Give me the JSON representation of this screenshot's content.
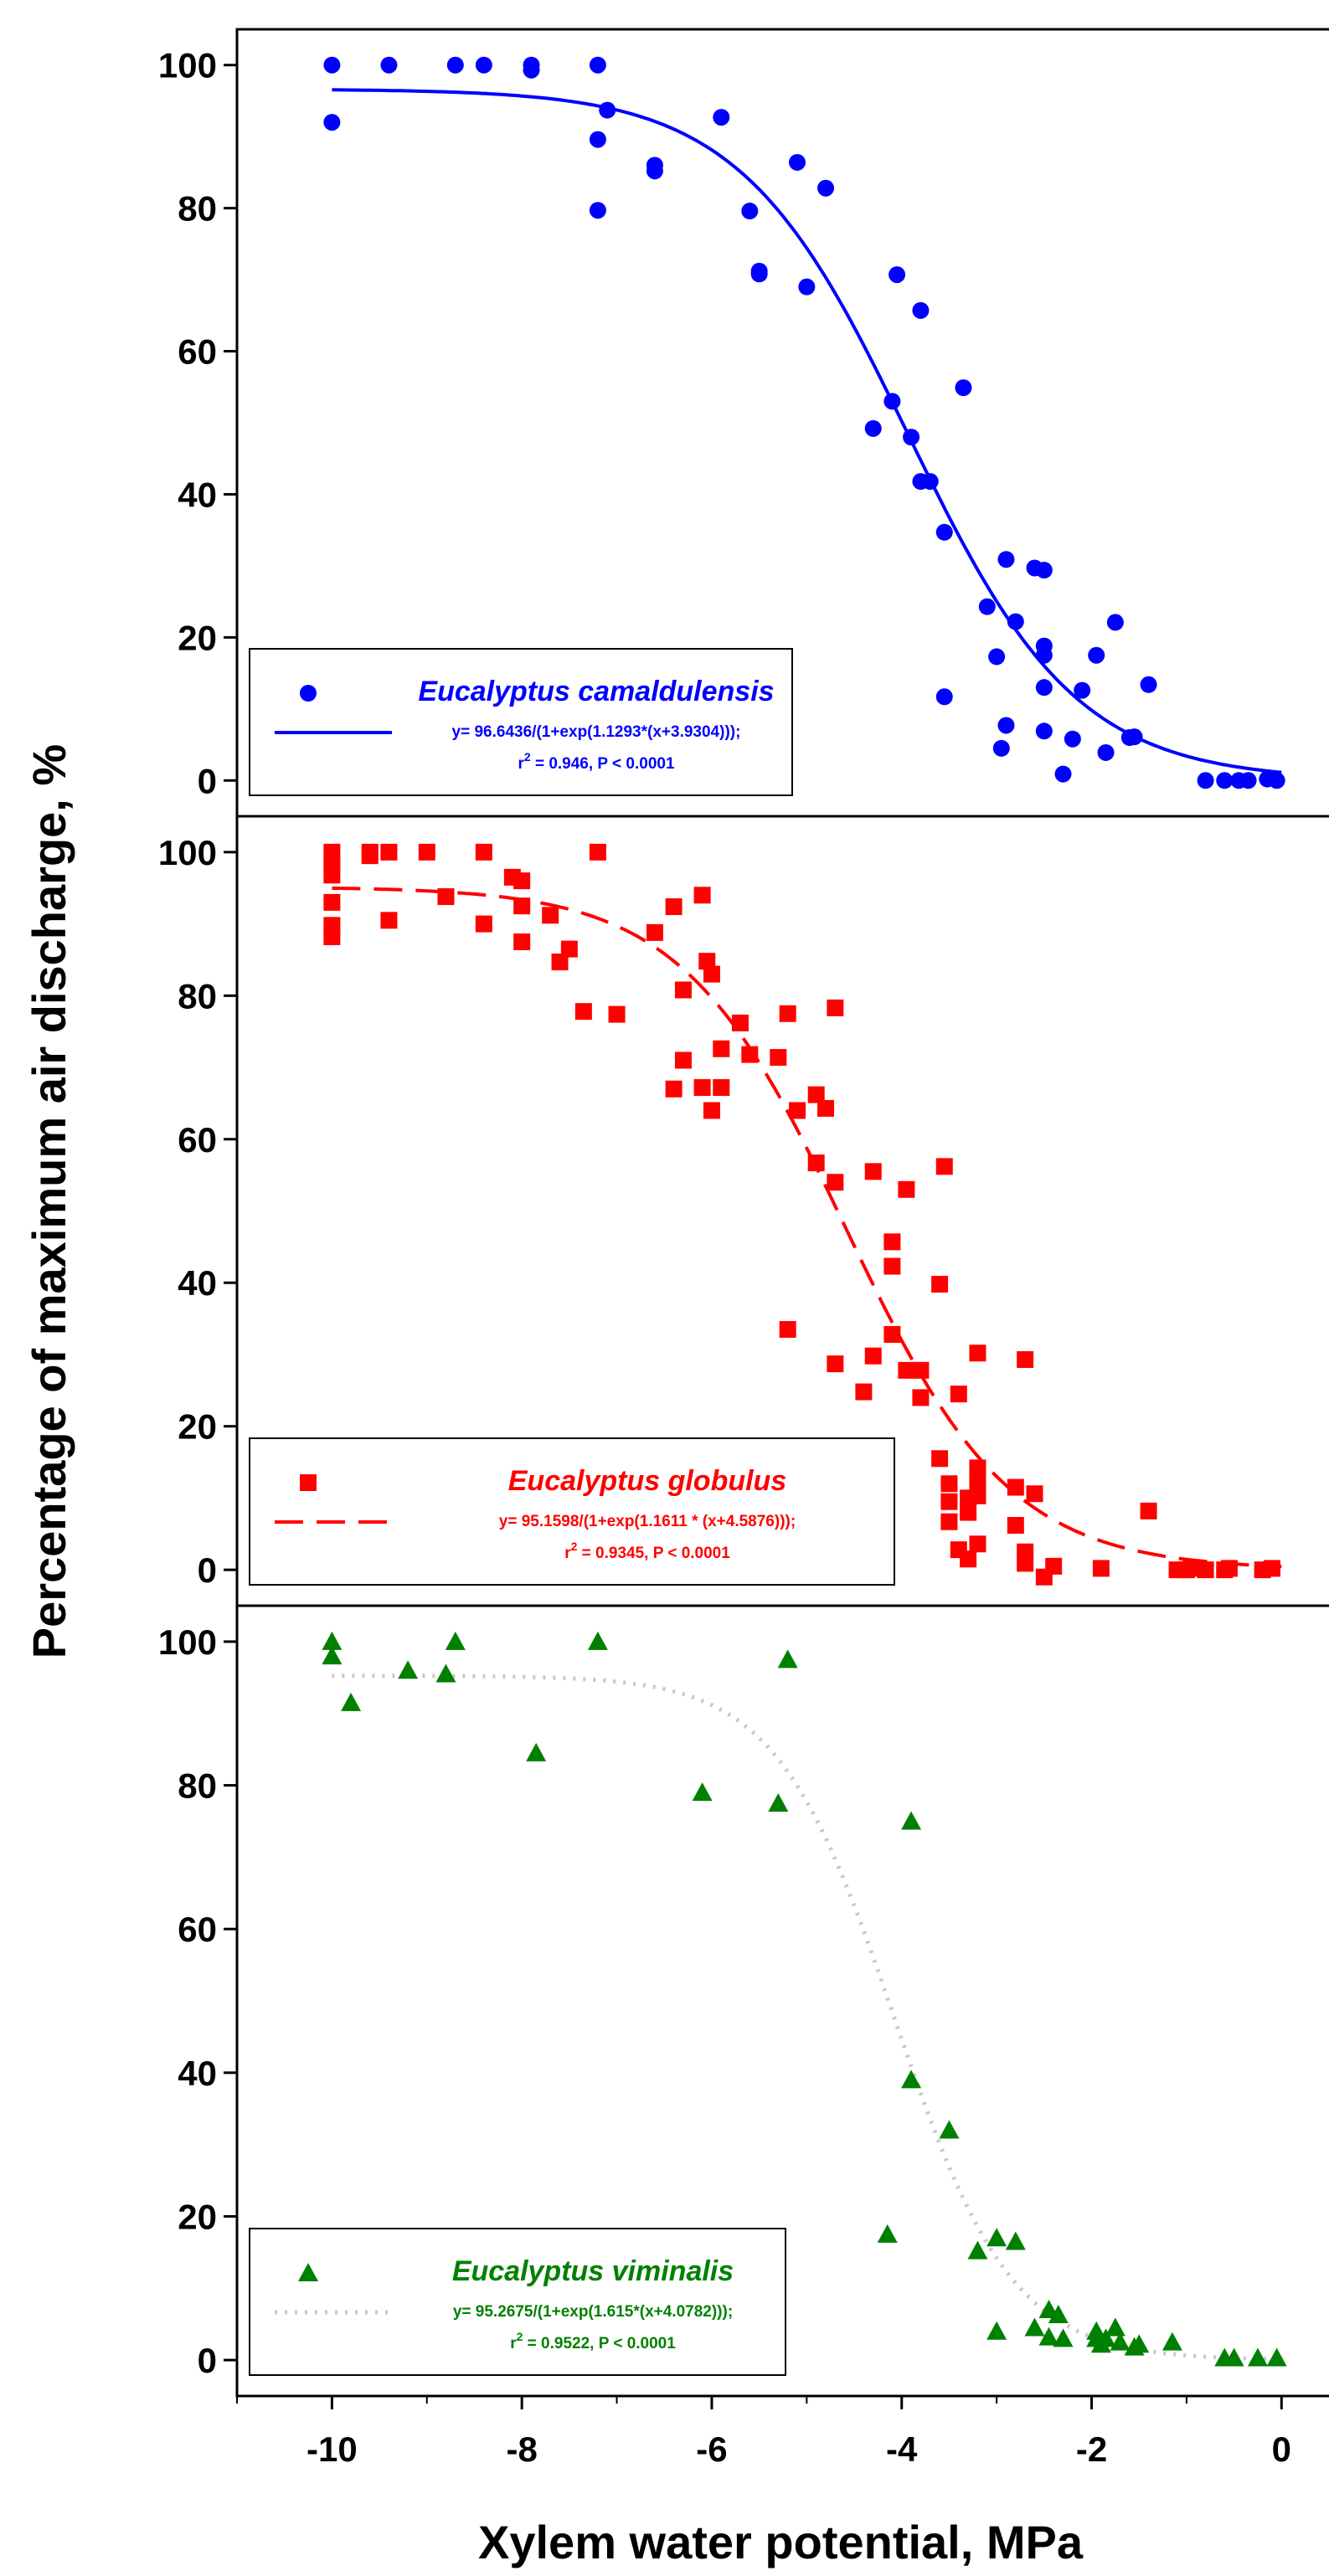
{
  "figure": {
    "xlabel": "Xylem water potential, MPa",
    "ylabel": "Percentage of maximum air discharge, %",
    "xticks": [
      -10,
      -8,
      -6,
      -4,
      -2,
      0
    ],
    "xlim": [
      -11,
      0.5
    ],
    "ylim": [
      -5,
      105
    ],
    "yticks": [
      0,
      20,
      40,
      60,
      80,
      100
    ]
  },
  "chart_data": [
    {
      "type": "scatter",
      "title": "",
      "xlabel": "Xylem water potential, MPa",
      "ylabel": "Percentage of maximum air discharge, %",
      "xlim": [
        -11,
        0.5
      ],
      "ylim": [
        -5,
        105
      ],
      "color": "#0000ff",
      "marker": "circle",
      "line_style": "solid",
      "legend_position": "bottom-left",
      "legend": {
        "name": "Eucalyptus camaldulensis",
        "equation": "y= 96.6436/(1+exp(1.1293*(x+3.9304)));",
        "r2_prefix": "r",
        "r2_sup": "2",
        "r2_suffix": " = 0.946, P < 0.0001"
      },
      "fit": {
        "a": 96.6436,
        "b": 1.1293,
        "c": 3.9304
      },
      "series": [
        {
          "name": "Eucalyptus camaldulensis",
          "points": [
            [
              -10.0,
              100
            ],
            [
              -10.0,
              92
            ],
            [
              -9.4,
              100
            ],
            [
              -8.7,
              100
            ],
            [
              -8.4,
              100
            ],
            [
              -7.9,
              100
            ],
            [
              -7.9,
              99.3
            ],
            [
              -7.2,
              100
            ],
            [
              -7.2,
              89.6
            ],
            [
              -7.2,
              79.7
            ],
            [
              -7.1,
              93.7
            ],
            [
              -6.6,
              86
            ],
            [
              -6.6,
              85.2
            ],
            [
              -5.9,
              92.7
            ],
            [
              -5.6,
              79.6
            ],
            [
              -5.5,
              71.2
            ],
            [
              -5.5,
              70.8
            ],
            [
              -5.1,
              86.4
            ],
            [
              -5.0,
              69
            ],
            [
              -4.8,
              82.8
            ],
            [
              -4.3,
              49.2
            ],
            [
              -4.1,
              53
            ],
            [
              -4.05,
              70.7
            ],
            [
              -3.9,
              48
            ],
            [
              -3.8,
              65.7
            ],
            [
              -3.8,
              41.8
            ],
            [
              -3.7,
              41.8
            ],
            [
              -3.55,
              34.7
            ],
            [
              -3.55,
              11.7
            ],
            [
              -3.35,
              54.9
            ],
            [
              -3.1,
              24.3
            ],
            [
              -3.0,
              17.3
            ],
            [
              -2.95,
              4.5
            ],
            [
              -2.9,
              30.9
            ],
            [
              -2.9,
              7.7
            ],
            [
              -2.8,
              22.2
            ],
            [
              -2.6,
              29.7
            ],
            [
              -2.5,
              29.4
            ],
            [
              -2.5,
              18.8
            ],
            [
              -2.5,
              17.5
            ],
            [
              -2.5,
              13
            ],
            [
              -2.5,
              6.9
            ],
            [
              -2.3,
              0.9
            ],
            [
              -2.2,
              5.8
            ],
            [
              -2.1,
              12.6
            ],
            [
              -1.95,
              17.5
            ],
            [
              -1.85,
              3.9
            ],
            [
              -1.75,
              22.1
            ],
            [
              -1.6,
              6
            ],
            [
              -1.55,
              6.1
            ],
            [
              -1.4,
              13.4
            ],
            [
              -0.8,
              0
            ],
            [
              -0.6,
              0
            ],
            [
              -0.45,
              0
            ],
            [
              -0.35,
              0
            ],
            [
              -0.15,
              0.2
            ],
            [
              -0.05,
              0
            ]
          ]
        }
      ]
    },
    {
      "type": "scatter",
      "title": "",
      "xlabel": "Xylem water potential, MPa",
      "ylabel": "Percentage of maximum air discharge, %",
      "xlim": [
        -11,
        0.5
      ],
      "ylim": [
        -5,
        105
      ],
      "color": "#ff0000",
      "marker": "square",
      "line_style": "dashed",
      "legend_position": "bottom-left",
      "legend": {
        "name": "Eucalyptus globulus",
        "equation": "y= 95.1598/(1+exp(1.1611 * (x+4.5876)));",
        "r2_prefix": "r",
        "r2_sup": "2",
        "r2_suffix": " = 0.9345, P < 0.0001"
      },
      "fit": {
        "a": 95.1598,
        "b": 1.1611,
        "c": 4.5876
      },
      "series": [
        {
          "name": "Eucalyptus globulus",
          "points": [
            [
              -10.0,
              100
            ],
            [
              -10.0,
              98.5
            ],
            [
              -10.0,
              96.8
            ],
            [
              -10.0,
              93
            ],
            [
              -10.0,
              89.8
            ],
            [
              -10.0,
              88.2
            ],
            [
              -9.6,
              99.5
            ],
            [
              -9.6,
              100
            ],
            [
              -9.4,
              100
            ],
            [
              -9.4,
              90.5
            ],
            [
              -9.0,
              100
            ],
            [
              -8.8,
              93.8
            ],
            [
              -8.4,
              100
            ],
            [
              -8.4,
              90
            ],
            [
              -8.1,
              96.5
            ],
            [
              -8.0,
              96
            ],
            [
              -8.0,
              92.5
            ],
            [
              -8.0,
              87.5
            ],
            [
              -7.7,
              91.2
            ],
            [
              -7.6,
              84.7
            ],
            [
              -7.5,
              86.5
            ],
            [
              -7.35,
              77.8
            ],
            [
              -7.2,
              100
            ],
            [
              -7.0,
              77.4
            ],
            [
              -6.6,
              88.8
            ],
            [
              -6.4,
              92.4
            ],
            [
              -6.3,
              80.8
            ],
            [
              -6.3,
              71
            ],
            [
              -6.4,
              67
            ],
            [
              -6.1,
              94
            ],
            [
              -6.1,
              67.2
            ],
            [
              -6.05,
              84.8
            ],
            [
              -6.0,
              83
            ],
            [
              -6.0,
              64
            ],
            [
              -5.9,
              67.2
            ],
            [
              -5.9,
              72.6
            ],
            [
              -5.7,
              76.2
            ],
            [
              -5.6,
              71.8
            ],
            [
              -5.3,
              71.4
            ],
            [
              -5.2,
              77.5
            ],
            [
              -5.2,
              33.5
            ],
            [
              -5.1,
              64
            ],
            [
              -4.9,
              66.2
            ],
            [
              -4.9,
              56.7
            ],
            [
              -4.8,
              64.3
            ],
            [
              -4.7,
              54
            ],
            [
              -4.7,
              78.3
            ],
            [
              -4.7,
              28.7
            ],
            [
              -4.4,
              24.8
            ],
            [
              -4.3,
              55.5
            ],
            [
              -4.3,
              29.8
            ],
            [
              -4.1,
              45.7
            ],
            [
              -4.1,
              42.3
            ],
            [
              -4.1,
              32.8
            ],
            [
              -3.95,
              53
            ],
            [
              -3.95,
              27.8
            ],
            [
              -3.8,
              27.8
            ],
            [
              -3.8,
              24
            ],
            [
              -3.6,
              39.8
            ],
            [
              -3.6,
              15.5
            ],
            [
              -3.55,
              56.2
            ],
            [
              -3.5,
              12
            ],
            [
              -3.5,
              9.5
            ],
            [
              -3.5,
              6.7
            ],
            [
              -3.4,
              24.5
            ],
            [
              -3.4,
              2.8
            ],
            [
              -3.3,
              10
            ],
            [
              -3.3,
              8
            ],
            [
              -3.3,
              1.5
            ],
            [
              -3.2,
              30.2
            ],
            [
              -3.2,
              14.2
            ],
            [
              -3.2,
              12.5
            ],
            [
              -3.2,
              10.3
            ],
            [
              -3.2,
              3.6
            ],
            [
              -2.8,
              11.5
            ],
            [
              -2.8,
              6.2
            ],
            [
              -2.7,
              29.3
            ],
            [
              -2.7,
              2.5
            ],
            [
              -2.7,
              0.9
            ],
            [
              -2.6,
              10.6
            ],
            [
              -2.5,
              -1
            ],
            [
              -2.4,
              0.5
            ],
            [
              -1.9,
              0.2
            ],
            [
              -1.4,
              8.2
            ],
            [
              -1.1,
              0
            ],
            [
              -1.0,
              0
            ],
            [
              -0.95,
              0.2
            ],
            [
              -0.8,
              0
            ],
            [
              -0.6,
              0
            ],
            [
              -0.55,
              0.2
            ],
            [
              -0.2,
              0
            ],
            [
              -0.1,
              0.2
            ]
          ]
        }
      ]
    },
    {
      "type": "scatter",
      "title": "",
      "xlabel": "Xylem water potential, MPa",
      "ylabel": "Percentage of maximum air discharge, %",
      "xlim": [
        -11,
        0.5
      ],
      "ylim": [
        -5,
        105
      ],
      "color": "#008000",
      "marker": "triangle",
      "line_style": "dotted",
      "line_color": "#c8c8c8",
      "legend_position": "bottom-left",
      "legend": {
        "name": "Eucalyptus viminalis",
        "equation": "y= 95.2675/(1+exp(1.615*(x+4.0782)));",
        "r2_prefix": "r",
        "r2_sup": "2",
        "r2_suffix": " = 0.9522, P < 0.0001"
      },
      "fit": {
        "a": 95.2675,
        "b": 1.615,
        "c": 4.0782
      },
      "series": [
        {
          "name": "Eucalyptus viminalis",
          "points": [
            [
              -10.0,
              100
            ],
            [
              -10.0,
              98
            ],
            [
              -9.8,
              91.5
            ],
            [
              -9.2,
              96
            ],
            [
              -8.8,
              95.5
            ],
            [
              -8.7,
              100
            ],
            [
              -7.85,
              84.5
            ],
            [
              -7.2,
              100
            ],
            [
              -6.1,
              79
            ],
            [
              -5.3,
              77.5
            ],
            [
              -5.2,
              97.5
            ],
            [
              -4.15,
              17.5
            ],
            [
              -3.9,
              75
            ],
            [
              -3.9,
              39
            ],
            [
              -3.5,
              32
            ],
            [
              -3.2,
              15.2
            ],
            [
              -3.0,
              17
            ],
            [
              -3.0,
              4
            ],
            [
              -2.8,
              16.5
            ],
            [
              -2.6,
              4.5
            ],
            [
              -2.45,
              7
            ],
            [
              -2.45,
              3.2
            ],
            [
              -2.35,
              6.3
            ],
            [
              -2.3,
              3
            ],
            [
              -1.95,
              4
            ],
            [
              -1.95,
              3
            ],
            [
              -1.9,
              2.2
            ],
            [
              -1.85,
              3
            ],
            [
              -1.75,
              4.5
            ],
            [
              -1.7,
              2.5
            ],
            [
              -1.55,
              1.8
            ],
            [
              -1.5,
              2.2
            ],
            [
              -1.15,
              2.5
            ],
            [
              -0.6,
              0.3
            ],
            [
              -0.5,
              0.3
            ],
            [
              -0.25,
              0.3
            ],
            [
              -0.05,
              0.3
            ]
          ]
        }
      ]
    }
  ]
}
